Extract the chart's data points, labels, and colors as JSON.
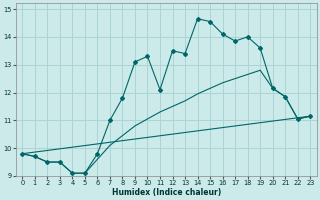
{
  "xlabel": "Humidex (Indice chaleur)",
  "bg_color": "#cceaea",
  "grid_color": "#aad4d4",
  "line_color": "#006666",
  "xlim": [
    -0.5,
    23.5
  ],
  "ylim": [
    9,
    15.2
  ],
  "yticks": [
    9,
    10,
    11,
    12,
    13,
    14,
    15
  ],
  "xticks": [
    0,
    1,
    2,
    3,
    4,
    5,
    6,
    7,
    8,
    9,
    10,
    11,
    12,
    13,
    14,
    15,
    16,
    17,
    18,
    19,
    20,
    21,
    22,
    23
  ],
  "series1_x": [
    0,
    1,
    2,
    3,
    4,
    5,
    6,
    7,
    8,
    9,
    10,
    11,
    12,
    13,
    14,
    15,
    16,
    17,
    18,
    19,
    20,
    21,
    22,
    23
  ],
  "series1_y": [
    9.8,
    9.7,
    9.5,
    9.5,
    9.1,
    9.1,
    9.8,
    11.0,
    11.8,
    13.1,
    13.3,
    12.1,
    13.5,
    13.4,
    14.65,
    14.55,
    14.1,
    13.85,
    14.0,
    13.6,
    12.15,
    11.85,
    11.05,
    11.15
  ],
  "series2_x": [
    0,
    1,
    2,
    3,
    4,
    5,
    6,
    7,
    8,
    9,
    10,
    11,
    12,
    13,
    14,
    15,
    16,
    17,
    18,
    19,
    20,
    21,
    22,
    23
  ],
  "series2_y": [
    9.8,
    9.7,
    9.5,
    9.5,
    9.1,
    9.1,
    9.6,
    10.1,
    10.45,
    10.8,
    11.05,
    11.3,
    11.5,
    11.7,
    11.95,
    12.15,
    12.35,
    12.5,
    12.65,
    12.8,
    12.15,
    11.85,
    11.05,
    11.15
  ],
  "series3_x": [
    0,
    23
  ],
  "series3_y": [
    9.8,
    11.15
  ]
}
